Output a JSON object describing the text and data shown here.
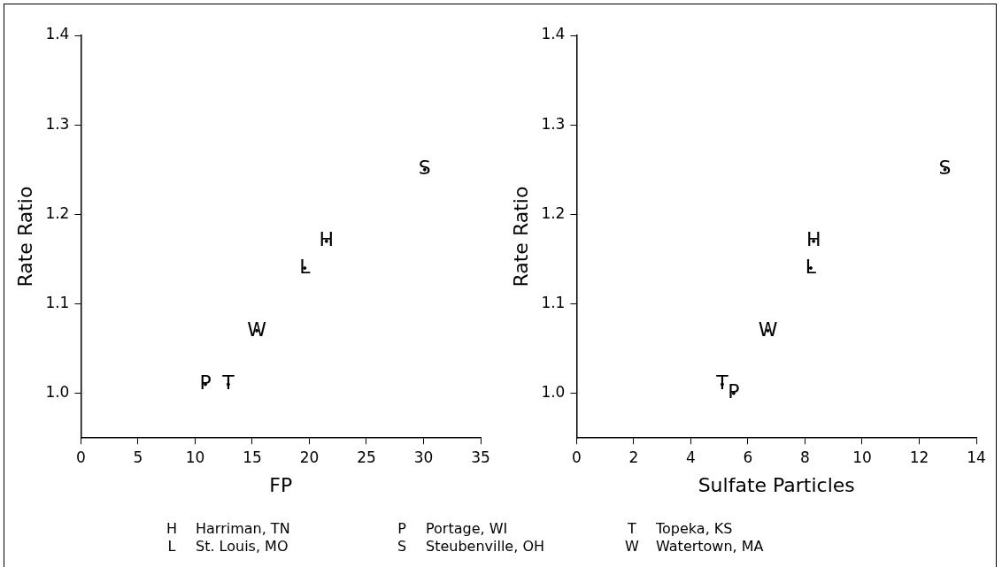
{
  "chart_data": [
    {
      "type": "scatter",
      "xlabel": "FP",
      "ylabel": "Rate Ratio",
      "xlim": [
        0,
        35
      ],
      "xticks": [
        0,
        5,
        10,
        15,
        20,
        25,
        30,
        35
      ],
      "ylim": [
        0.95,
        1.4
      ],
      "yticks": [
        {
          "value": 1,
          "label": "1.0"
        },
        1.1,
        1.2,
        1.3,
        1.4
      ],
      "grid": false,
      "annotations": [
        "Harriman, TN",
        "St. Louis, MO",
        "Portage, WI",
        "Steubenville, OH",
        "Topeka, KS",
        "Watertown, MA"
      ],
      "series": [
        {
          "color": "#000000",
          "x": [
            21.5
          ],
          "values": [
            1.17
          ],
          "value_labels": [
            "H"
          ]
        },
        {
          "color": "#000000",
          "x": [
            19.6
          ],
          "values": [
            1.14
          ],
          "value_labels": [
            "L"
          ]
        },
        {
          "color": "#000000",
          "x": [
            10.9
          ],
          "values": [
            1.01
          ],
          "value_labels": [
            "P"
          ]
        },
        {
          "color": "#000000",
          "x": [
            30.1
          ],
          "values": [
            1.25
          ],
          "value_labels": [
            "S"
          ]
        },
        {
          "color": "#000000",
          "x": [
            12.9
          ],
          "values": [
            1.01
          ],
          "value_labels": [
            "T"
          ]
        },
        {
          "color": "#000000",
          "x": [
            15.4
          ],
          "values": [
            1.07
          ],
          "value_labels": [
            "W"
          ]
        }
      ]
    },
    {
      "type": "scatter",
      "xlabel": "Sulfate Particles",
      "ylabel": "Rate Ratio",
      "xlim": [
        0,
        14
      ],
      "xticks": [
        0,
        2,
        4,
        6,
        8,
        10,
        12,
        14
      ],
      "ylim": [
        0.95,
        1.4
      ],
      "yticks": [
        {
          "value": 1,
          "label": "1.0"
        },
        1.1,
        1.2,
        1.3,
        1.4
      ],
      "grid": false,
      "series": [
        {
          "color": "#000000",
          "x": [
            8.3
          ],
          "values": [
            1.17
          ],
          "value_labels": [
            "H"
          ]
        },
        {
          "color": "#000000",
          "x": [
            8.2
          ],
          "values": [
            1.14
          ],
          "value_labels": [
            "L"
          ]
        },
        {
          "color": "#000000",
          "x": [
            5.5
          ],
          "values": [
            1.0
          ],
          "value_labels": [
            "P"
          ]
        },
        {
          "color": "#000000",
          "x": [
            12.9
          ],
          "values": [
            1.25
          ],
          "value_labels": [
            "S"
          ]
        },
        {
          "color": "#000000",
          "x": [
            5.1
          ],
          "values": [
            1.01
          ],
          "value_labels": [
            "T"
          ]
        },
        {
          "color": "#000000",
          "x": [
            6.7
          ],
          "values": [
            1.07
          ],
          "value_labels": [
            "W"
          ]
        }
      ]
    }
  ]
}
